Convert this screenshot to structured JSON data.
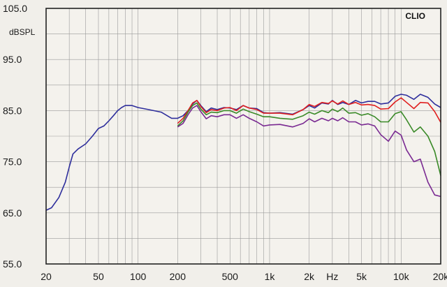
{
  "chart_data": {
    "type": "line",
    "brand": "CLIO",
    "ylabel": "dBSPL",
    "x_scale": "log",
    "xlim": [
      20,
      20000
    ],
    "ylim": [
      55,
      105
    ],
    "grid": true,
    "y_ticks": [
      {
        "value": 105,
        "label": "105.0"
      },
      {
        "value": 95,
        "label": "95.0"
      },
      {
        "value": 85,
        "label": "85.0"
      },
      {
        "value": 75,
        "label": "75.0"
      },
      {
        "value": 65,
        "label": "65.0"
      },
      {
        "value": 55,
        "label": "55.0"
      }
    ],
    "x_ticks": [
      {
        "value": 20,
        "label": "20"
      },
      {
        "value": 50,
        "label": "50"
      },
      {
        "value": 100,
        "label": "100"
      },
      {
        "value": 200,
        "label": "200"
      },
      {
        "value": 500,
        "label": "500"
      },
      {
        "value": 1000,
        "label": "1k"
      },
      {
        "value": 2000,
        "label": "2k"
      },
      {
        "value": 3000,
        "label": "Hz"
      },
      {
        "value": 5000,
        "label": "5k"
      },
      {
        "value": 10000,
        "label": "10k"
      },
      {
        "value": 20000,
        "label": "20k"
      }
    ],
    "series": [
      {
        "color": "#2e2e9c",
        "x": [
          20,
          22,
          25,
          28,
          30,
          32,
          35,
          40,
          45,
          50,
          55,
          60,
          65,
          70,
          75,
          80,
          90,
          100,
          120,
          150,
          180,
          200,
          220,
          240,
          260,
          280,
          300,
          330,
          360,
          400,
          450,
          500,
          560,
          630,
          700,
          800,
          900,
          1000,
          1200,
          1500,
          1800,
          2000,
          2200,
          2500,
          2800,
          3000,
          3300,
          3600,
          4000,
          4500,
          5000,
          5600,
          6300,
          7000,
          8000,
          9000,
          10000,
          11000,
          12500,
          14000,
          16000,
          18000,
          20000
        ],
        "y": [
          65.5,
          66,
          68,
          71,
          74,
          76.5,
          77.5,
          78.5,
          80,
          81.5,
          82,
          83,
          84,
          85,
          85.6,
          86,
          86,
          85.6,
          85.2,
          84.7,
          83.5,
          83.5,
          84,
          85,
          86.3,
          87,
          86,
          84.8,
          85.5,
          85.2,
          85.6,
          85.5,
          85.2,
          86,
          85.5,
          85.4,
          84.6,
          84.5,
          84.6,
          84.3,
          85.2,
          86,
          85.5,
          86.5,
          86.3,
          87,
          86.2,
          86.6,
          86.2,
          87,
          86.5,
          86.8,
          86.8,
          86.3,
          86.5,
          87.8,
          88.2,
          88,
          87.2,
          88.2,
          87.6,
          86.3,
          85.6
        ]
      },
      {
        "color": "#e02020",
        "x": [
          200,
          220,
          240,
          260,
          280,
          300,
          330,
          360,
          400,
          450,
          500,
          560,
          630,
          700,
          800,
          900,
          1000,
          1200,
          1500,
          1800,
          2000,
          2200,
          2500,
          2800,
          3000,
          3300,
          3600,
          4000,
          4500,
          5000,
          5600,
          6300,
          7000,
          8000,
          9000,
          10000,
          11000,
          12500,
          14000,
          16000,
          18000,
          20000
        ],
        "y": [
          82.5,
          83.5,
          85,
          86.5,
          87,
          85.8,
          84.6,
          85.2,
          85,
          85.5,
          85.6,
          85,
          86,
          85.5,
          85.2,
          84.5,
          84.5,
          84.5,
          84.2,
          85.2,
          86.2,
          85.8,
          86.6,
          86.4,
          86.9,
          86.3,
          86.9,
          86.2,
          86.6,
          86.1,
          86.2,
          86,
          85.3,
          85.4,
          86.7,
          87.5,
          86.6,
          85.4,
          86.6,
          86.5,
          84.8,
          82.7
        ]
      },
      {
        "color": "#3a8a28",
        "x": [
          200,
          220,
          240,
          260,
          280,
          300,
          330,
          360,
          400,
          450,
          500,
          560,
          630,
          700,
          800,
          900,
          1000,
          1200,
          1500,
          1800,
          2000,
          2200,
          2500,
          2800,
          3000,
          3300,
          3600,
          4000,
          4500,
          5000,
          5600,
          6300,
          7000,
          8000,
          9000,
          10000,
          11000,
          12500,
          14000,
          16000,
          18000,
          20000
        ],
        "y": [
          82,
          83,
          84.7,
          86,
          86.5,
          85.3,
          84.2,
          84.7,
          84.6,
          85,
          85,
          84.5,
          85.3,
          84.8,
          84.3,
          83.8,
          83.8,
          83.5,
          83.3,
          84,
          84.7,
          84.3,
          85,
          84.6,
          85.3,
          84.8,
          85.5,
          84.5,
          84.6,
          84.1,
          84.4,
          83.8,
          82.8,
          82.8,
          84.4,
          84.8,
          83.2,
          80.8,
          81.8,
          80,
          77,
          72.3
        ]
      },
      {
        "color": "#7a2a92",
        "x": [
          200,
          220,
          240,
          260,
          280,
          300,
          330,
          360,
          400,
          450,
          500,
          560,
          630,
          700,
          800,
          900,
          1000,
          1200,
          1500,
          1800,
          2000,
          2200,
          2500,
          2800,
          3000,
          3300,
          3600,
          4000,
          4500,
          5000,
          5600,
          6300,
          7000,
          8000,
          9000,
          10000,
          11000,
          12500,
          14000,
          16000,
          18000,
          20000
        ],
        "y": [
          81.8,
          82.5,
          84.2,
          85.5,
          86,
          84.8,
          83.4,
          84,
          83.8,
          84.2,
          84.2,
          83.5,
          84.2,
          83.5,
          82.8,
          82,
          82.2,
          82.3,
          81.8,
          82.5,
          83.4,
          82.8,
          83.5,
          83,
          83.5,
          83,
          83.6,
          82.8,
          82.8,
          82.2,
          82.4,
          82,
          80.3,
          79,
          81,
          80.2,
          77.3,
          75,
          75.5,
          71,
          68.5,
          68.2
        ]
      }
    ]
  }
}
